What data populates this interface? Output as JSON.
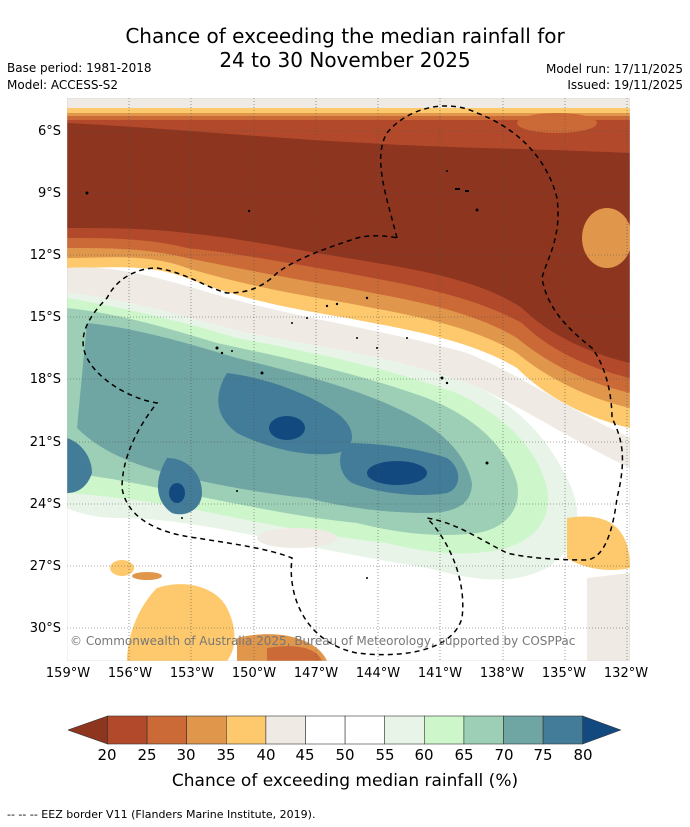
{
  "title_line1": "Chance of exceeding the median rainfall for",
  "title_line2": "24 to 30 November 2025",
  "base_period": "Base period: 1981-2018",
  "model": "Model: ACCESS-S2",
  "model_run": "Model run: 17/11/2025",
  "issued": "Issued: 19/11/2025",
  "copyright": "© Commonwealth of Australia 2025, Bureau of Meteorology, supported by COSPPac",
  "lat_ticks": [
    "6°S",
    "9°S",
    "12°S",
    "15°S",
    "18°S",
    "21°S",
    "24°S",
    "27°S",
    "30°S"
  ],
  "lon_ticks": [
    "159°W",
    "156°W",
    "153°W",
    "150°W",
    "147°W",
    "144°W",
    "141°W",
    "138°W",
    "135°W",
    "132°W"
  ],
  "colorbar_ticks": [
    "20",
    "25",
    "30",
    "35",
    "40",
    "45",
    "50",
    "55",
    "60",
    "65",
    "70",
    "75",
    "80"
  ],
  "colorbar_label": "Chance of exceeding median rainfall (%)",
  "footer": "--  --  -- EEZ border V11 (Flanders Marine Institute, 2019).",
  "colorbar_colors": [
    "#8e3520",
    "#b2492a",
    "#cb6a36",
    "#e0964b",
    "#fdc96c",
    "#efebe4",
    "#ffffff",
    "#ffffff",
    "#e8f4e8",
    "#cdf7cb",
    "#9ccfb5",
    "#6fa6a3",
    "#437c98",
    "#12497f"
  ]
}
